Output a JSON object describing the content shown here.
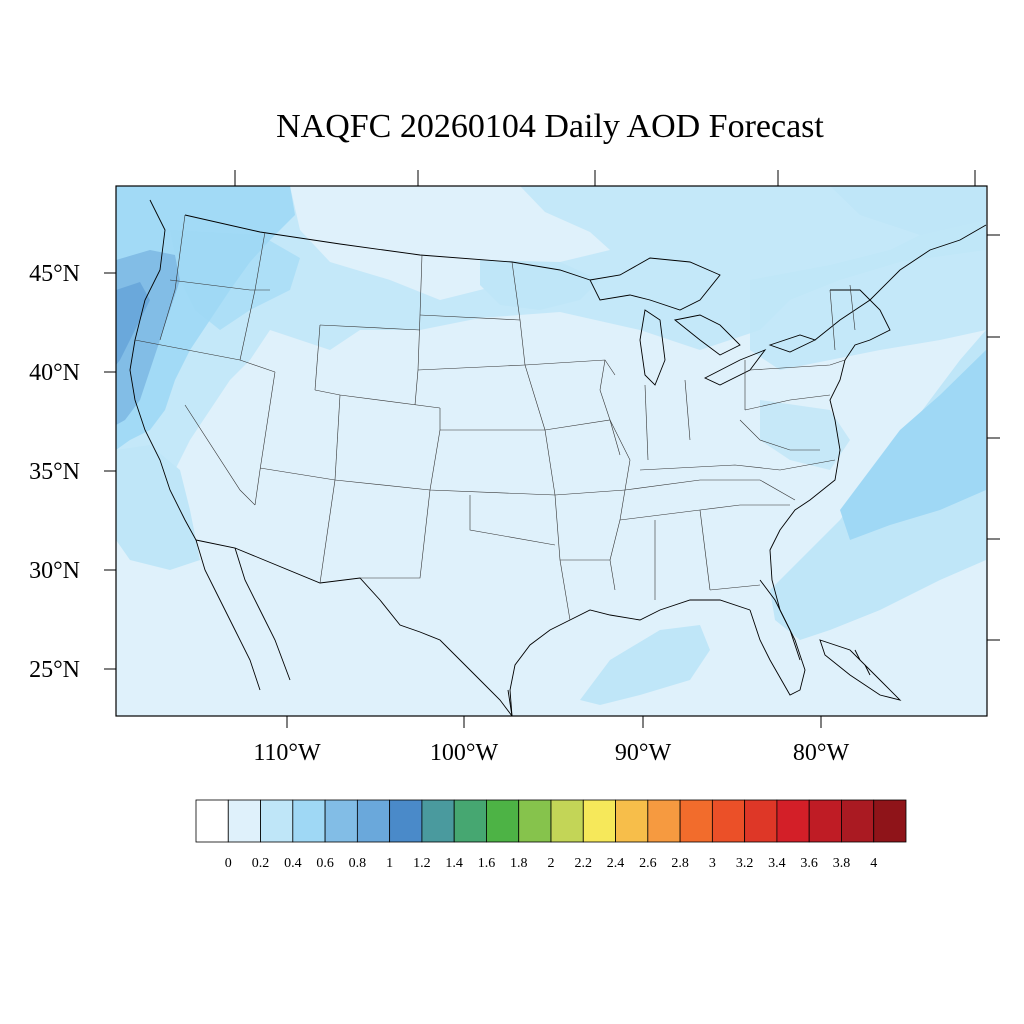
{
  "title": "NAQFC 20260104 Daily AOD Forecast",
  "map": {
    "projection": "lambert-conformal",
    "region": "CONUS",
    "lat_labels": [
      "45°N",
      "40°N",
      "35°N",
      "30°N",
      "25°N"
    ],
    "lon_labels": [
      "110°W",
      "100°W",
      "90°W",
      "80°W"
    ],
    "background_aod_level": 0.2
  },
  "colorbar": {
    "tick_labels": [
      "0",
      "0.2",
      "0.4",
      "0.6",
      "0.8",
      "1",
      "1.2",
      "1.4",
      "1.6",
      "1.8",
      "2",
      "2.2",
      "2.4",
      "2.6",
      "2.8",
      "3",
      "3.2",
      "3.4",
      "3.6",
      "3.8",
      "4"
    ],
    "colors": [
      "#ffffff",
      "#dff1fb",
      "#bfe6f8",
      "#9fd8f5",
      "#82bde6",
      "#6aa8db",
      "#4a8ac9",
      "#4a9a9e",
      "#46a771",
      "#4db345",
      "#86c34c",
      "#c3d557",
      "#f6e85a",
      "#f7be4a",
      "#f69a40",
      "#f26c2c",
      "#eb5028",
      "#de3727",
      "#d31f28",
      "#bf1c25",
      "#aa1a22",
      "#8f1419"
    ]
  }
}
